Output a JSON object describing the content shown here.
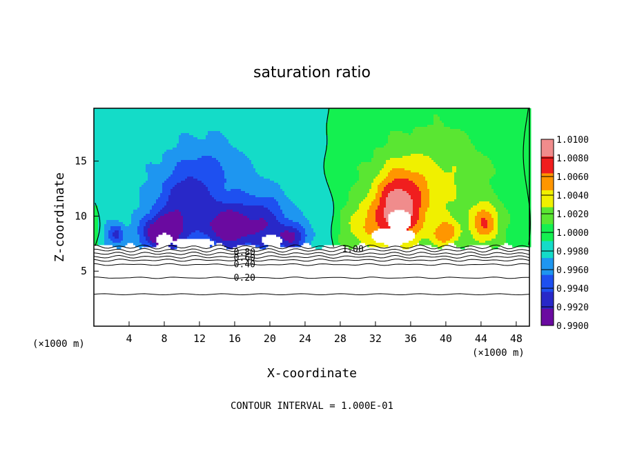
{
  "chart_data": {
    "type": "heatmap",
    "title": "saturation ratio",
    "xlabel": "X-coordinate",
    "ylabel": "Z-coordinate",
    "x_unit": "(×1000 m)",
    "y_unit": "(×1000 m)",
    "xlim": [
      0,
      49.5
    ],
    "ylim": [
      0,
      19.8
    ],
    "x_ticks": [
      4,
      8,
      12,
      16,
      20,
      24,
      28,
      32,
      36,
      40,
      44,
      48
    ],
    "y_ticks": [
      5,
      10,
      15
    ],
    "colorbar": {
      "levels": [
        0.99,
        0.992,
        0.994,
        0.996,
        0.998,
        1.0,
        1.002,
        1.004,
        1.006,
        1.008,
        1.01
      ],
      "labels": [
        "0.9900",
        "0.9920",
        "0.9940",
        "0.9960",
        "0.9980",
        "1.0000",
        "1.0020",
        "1.0040",
        "1.0060",
        "1.0080",
        "1.0100"
      ],
      "colors": [
        "#6a0aa0",
        "#2828c8",
        "#1e50f0",
        "#1e96f0",
        "#14dcc8",
        "#14f050",
        "#5ae632",
        "#f0f000",
        "#ff9600",
        "#f01e1e",
        "#f08c8c"
      ]
    },
    "contour_interval": "CONTOUR INTERVAL = 1.000E-01",
    "contour_labels": [
      {
        "text": "0.20",
        "x": 15.9,
        "z": 4.4
      },
      {
        "text": "0.40",
        "x": 15.9,
        "z": 5.6
      },
      {
        "text": "0.60",
        "x": 15.9,
        "z": 6.2
      },
      {
        "text": "0.80",
        "x": 15.9,
        "z": 6.7
      },
      {
        "text": "1.00",
        "x": 28.2,
        "z": 7.0
      }
    ],
    "contour_levels_z": [
      2.9,
      4.4,
      5.6,
      6.0,
      6.3,
      6.6,
      6.9,
      7.2
    ],
    "cloud_base_z": 7.3,
    "features": [
      {
        "sign": -1,
        "x": 7.5,
        "z": 8.4,
        "sx": 2.2,
        "sz": 1.6,
        "amp": 0.0085
      },
      {
        "sign": -1,
        "x": 10.0,
        "z": 10.5,
        "sx": 3.2,
        "sz": 3.4,
        "amp": 0.006
      },
      {
        "sign": -1,
        "x": 15.0,
        "z": 9.0,
        "sx": 2.4,
        "sz": 2.2,
        "amp": 0.0075
      },
      {
        "sign": -1,
        "x": 19.0,
        "z": 9.2,
        "sx": 3.0,
        "sz": 2.8,
        "amp": 0.0065
      },
      {
        "sign": -1,
        "x": 22.5,
        "z": 8.1,
        "sx": 1.8,
        "sz": 1.2,
        "amp": 0.006
      },
      {
        "sign": -1,
        "x": 2.5,
        "z": 8.3,
        "sx": 1.0,
        "sz": 1.0,
        "amp": 0.0055
      },
      {
        "sign": -1,
        "x": 13.0,
        "z": 14.0,
        "sx": 4.0,
        "sz": 3.0,
        "amp": 0.003
      },
      {
        "sign": 1,
        "x": 34.5,
        "z": 10.6,
        "sx": 2.9,
        "sz": 3.4,
        "amp": 0.0095
      },
      {
        "sign": 1,
        "x": 44.5,
        "z": 9.3,
        "sx": 1.7,
        "sz": 1.8,
        "amp": 0.0065
      },
      {
        "sign": 1,
        "x": 40.0,
        "z": 8.4,
        "sx": 1.6,
        "sz": 1.2,
        "amp": 0.0055
      },
      {
        "sign": 1,
        "x": 38.5,
        "z": 13.0,
        "sx": 5.5,
        "sz": 4.5,
        "amp": 0.0035
      },
      {
        "sign": 1,
        "x": 30.5,
        "z": 9.0,
        "sx": 2.2,
        "sz": 2.2,
        "amp": 0.0035
      }
    ]
  }
}
